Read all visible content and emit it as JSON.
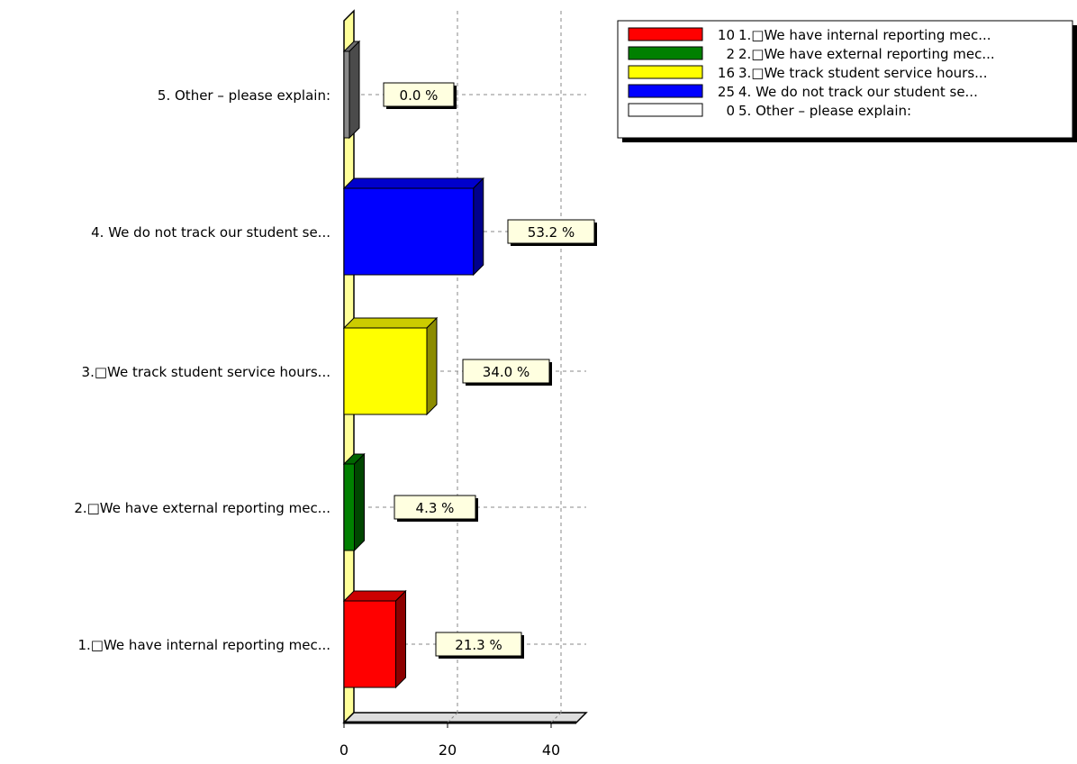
{
  "chart_data": {
    "type": "bar",
    "orientation": "horizontal",
    "style": "3d",
    "categories": [
      "1.□We have internal reporting mec...",
      "2.□We have external reporting mec...",
      "3.□We track student service hours...",
      "4. We do not track our student se...",
      "5. Other – please explain:"
    ],
    "values": [
      10,
      2,
      16,
      25,
      0
    ],
    "percent_labels": [
      "21.3 %",
      "4.3 %",
      "34.0 %",
      "53.2 %",
      "0.0 %"
    ],
    "colors": [
      "#ff0000",
      "#008000",
      "#ffff00",
      "#0000ff",
      "#888888"
    ],
    "xlim": [
      0,
      47
    ],
    "x_ticks": [
      "0",
      "20",
      "40"
    ],
    "x_tick_values": [
      0,
      20,
      40
    ],
    "grid": true,
    "legend": {
      "position": "top-right",
      "entries": [
        {
          "count": "10",
          "label": "1.□We have internal reporting mec...",
          "color": "#ff0000"
        },
        {
          "count": "2",
          "label": "2.□We have external reporting mec...",
          "color": "#008000"
        },
        {
          "count": "16",
          "label": "3.□We track student service hours...",
          "color": "#ffff00"
        },
        {
          "count": "25",
          "label": "4. We do not track our student se...",
          "color": "#0000ff"
        },
        {
          "count": "0",
          "label": "5. Other – please explain:",
          "color": "#ffffff"
        }
      ]
    }
  }
}
